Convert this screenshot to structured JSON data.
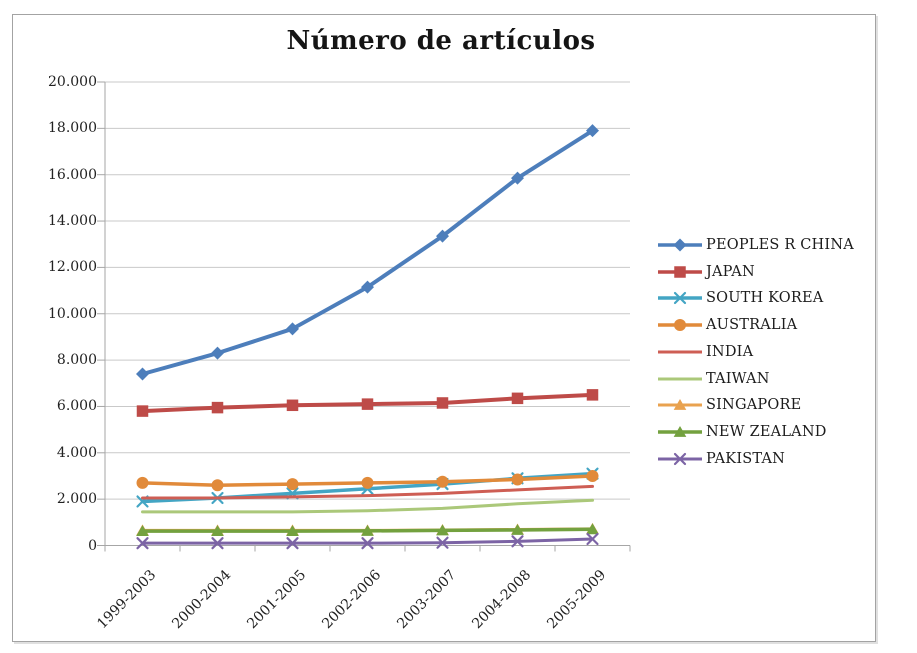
{
  "chart_data": {
    "type": "line",
    "title": "Número de artículos",
    "categories": [
      "1999-2003",
      "2000-2004",
      "2001-2005",
      "2002-2006",
      "2003-2007",
      "2004-2008",
      "2005-2009"
    ],
    "series": [
      {
        "name": "PEOPLES R CHINA",
        "color": "#4D7EBB",
        "marker": "diamond",
        "line_width": 4,
        "values": [
          7400,
          8300,
          9350,
          11150,
          13350,
          15850,
          17900
        ]
      },
      {
        "name": "JAPAN",
        "color": "#BE4B48",
        "marker": "square",
        "line_width": 4,
        "values": [
          5800,
          5950,
          6050,
          6100,
          6150,
          6350,
          6500
        ]
      },
      {
        "name": "SOUTH KOREA",
        "color": "#43A5C4",
        "marker": "x",
        "line_width": 3.5,
        "values": [
          1900,
          2050,
          2250,
          2450,
          2650,
          2900,
          3100
        ]
      },
      {
        "name": "AUSTRALIA",
        "color": "#E18A3A",
        "marker": "circle",
        "line_width": 3.5,
        "values": [
          2700,
          2600,
          2650,
          2700,
          2750,
          2850,
          3000
        ]
      },
      {
        "name": "INDIA",
        "color": "#CE5E54",
        "marker": "none",
        "line_width": 3,
        "values": [
          2050,
          2050,
          2100,
          2150,
          2250,
          2400,
          2550
        ]
      },
      {
        "name": "TAIWAN",
        "color": "#ABC87A",
        "marker": "none",
        "line_width": 3,
        "values": [
          1450,
          1450,
          1450,
          1500,
          1600,
          1800,
          1950
        ]
      },
      {
        "name": "SINGAPORE",
        "color": "#E9A24F",
        "marker": "triangle",
        "line_width": 3,
        "values": [
          650,
          650,
          650,
          650,
          670,
          690,
          720
        ]
      },
      {
        "name": "NEW ZEALAND",
        "color": "#73A13F",
        "marker": "triangle",
        "line_width": 3.5,
        "values": [
          620,
          620,
          620,
          630,
          650,
          670,
          700
        ]
      },
      {
        "name": "PAKISTAN",
        "color": "#7C64A5",
        "marker": "x",
        "line_width": 3,
        "values": [
          100,
          100,
          100,
          100,
          120,
          180,
          280
        ]
      }
    ],
    "y_axis": {
      "min": 0,
      "max": 20000,
      "step": 2000,
      "tick_labels": [
        "0",
        "2.000",
        "4.000",
        "6.000",
        "8.000",
        "10.000",
        "12.000",
        "14.000",
        "16.000",
        "18.000",
        "20.000"
      ]
    },
    "legend_position": "right",
    "grid": "horizontal",
    "colors": {
      "gridline": "#C9C9C9",
      "axis": "#A6A6A6",
      "text": "#222222",
      "background": "#FFFFFF",
      "border": "#A3A3A3"
    }
  }
}
